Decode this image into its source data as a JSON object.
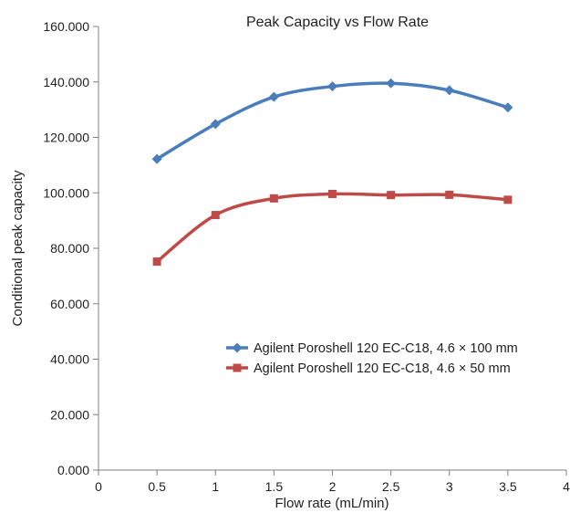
{
  "chart_data": {
    "type": "line",
    "title": "Peak Capacity vs Flow Rate",
    "xlabel": "Flow rate (mL/min)",
    "ylabel": "Conditional peak capacity",
    "xlim": [
      0,
      4
    ],
    "ylim": [
      0,
      160
    ],
    "x_ticks": [
      "0",
      "0.5",
      "1",
      "1.5",
      "2",
      "2.5",
      "3",
      "3.5",
      "4"
    ],
    "y_ticks": [
      "0.000",
      "20.000",
      "40.000",
      "60.000",
      "80.000",
      "100.000",
      "120.000",
      "140.000",
      "160.000"
    ],
    "grid": false,
    "legend_position": "center-right",
    "series": [
      {
        "name": "Agilent Poroshell 120 EC-C18, 4.6 × 100 mm",
        "color": "#4a7ebb",
        "marker": "diamond",
        "x": [
          0.5,
          1,
          1.5,
          2,
          2.5,
          3,
          3.5
        ],
        "values": [
          112.2,
          124.8,
          134.6,
          138.4,
          139.5,
          137.0,
          130.8
        ]
      },
      {
        "name": "Agilent Poroshell 120 EC-C18, 4.6 × 50 mm",
        "color": "#be4b48",
        "marker": "square",
        "x": [
          0.5,
          1,
          1.5,
          2,
          2.5,
          3,
          3.5
        ],
        "values": [
          75.2,
          92.0,
          98.0,
          99.6,
          99.2,
          99.3,
          97.5
        ]
      }
    ]
  }
}
